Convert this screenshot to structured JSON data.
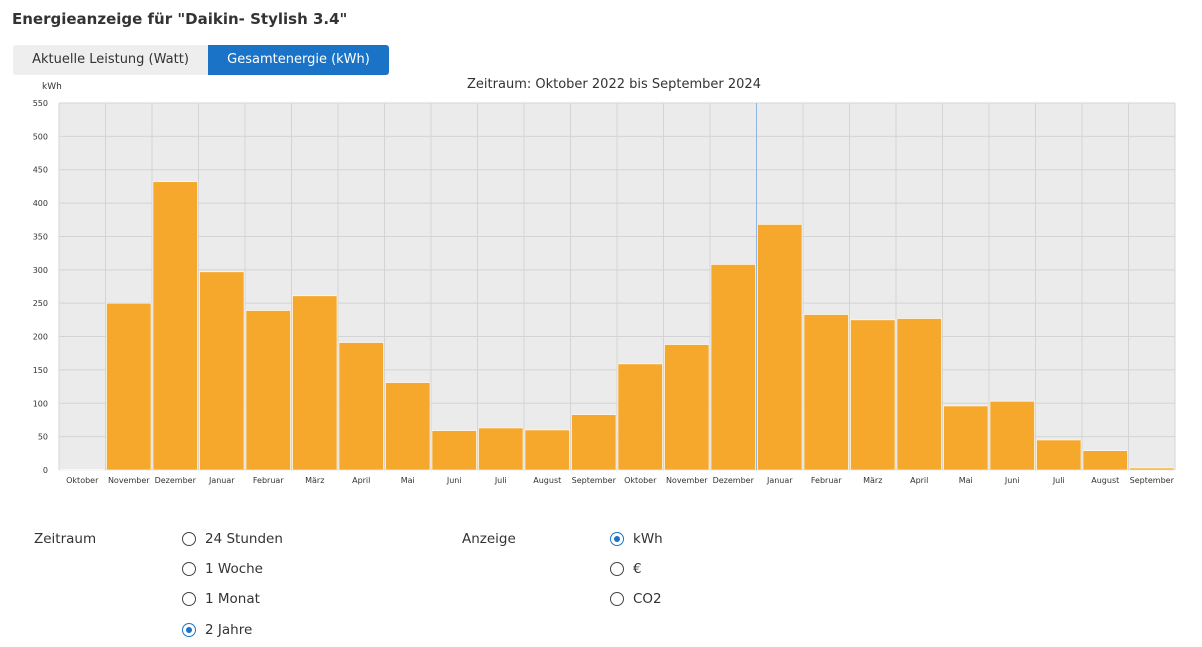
{
  "page_title": "Energieanzeige für \"Daikin- Stylish 3.4\"",
  "tabs": [
    {
      "label": "Aktuelle Leistung (Watt)",
      "active": false
    },
    {
      "label": "Gesamtenergie (kWh)",
      "active": true
    }
  ],
  "chart_data": {
    "type": "bar",
    "title": "Zeitraum: Oktober 2022 bis September 2024",
    "ylabel": "kWh",
    "ylim": [
      0,
      550
    ],
    "yticks": [
      0,
      50,
      100,
      150,
      200,
      250,
      300,
      350,
      400,
      450,
      500,
      550
    ],
    "categories": [
      "Oktober",
      "November",
      "Dezember",
      "Januar",
      "Februar",
      "März",
      "April",
      "Mai",
      "Juni",
      "Juli",
      "August",
      "September",
      "Oktober",
      "November",
      "Dezember",
      "Januar",
      "Februar",
      "März",
      "April",
      "Mai",
      "Juni",
      "Juli",
      "August",
      "September"
    ],
    "values": [
      1,
      250,
      432,
      297,
      239,
      261,
      191,
      131,
      59,
      63,
      60,
      83,
      159,
      188,
      308,
      368,
      233,
      225,
      227,
      96,
      103,
      45,
      29,
      3
    ],
    "grid": true,
    "bar_color": "#f5a82b",
    "marker_index": 15
  },
  "controls": {
    "zeitraum": {
      "label": "Zeitraum",
      "options": [
        {
          "label": "24 Stunden",
          "checked": false
        },
        {
          "label": "1 Woche",
          "checked": false
        },
        {
          "label": "1 Monat",
          "checked": false
        },
        {
          "label": "2 Jahre",
          "checked": true
        }
      ]
    },
    "anzeige": {
      "label": "Anzeige",
      "options": [
        {
          "label": "kWh",
          "checked": true
        },
        {
          "label": "€",
          "checked": false
        },
        {
          "label": "CO2",
          "checked": false
        }
      ]
    }
  },
  "colors": {
    "accent": "#1a73c7",
    "plot_bg": "#ebebeb"
  }
}
